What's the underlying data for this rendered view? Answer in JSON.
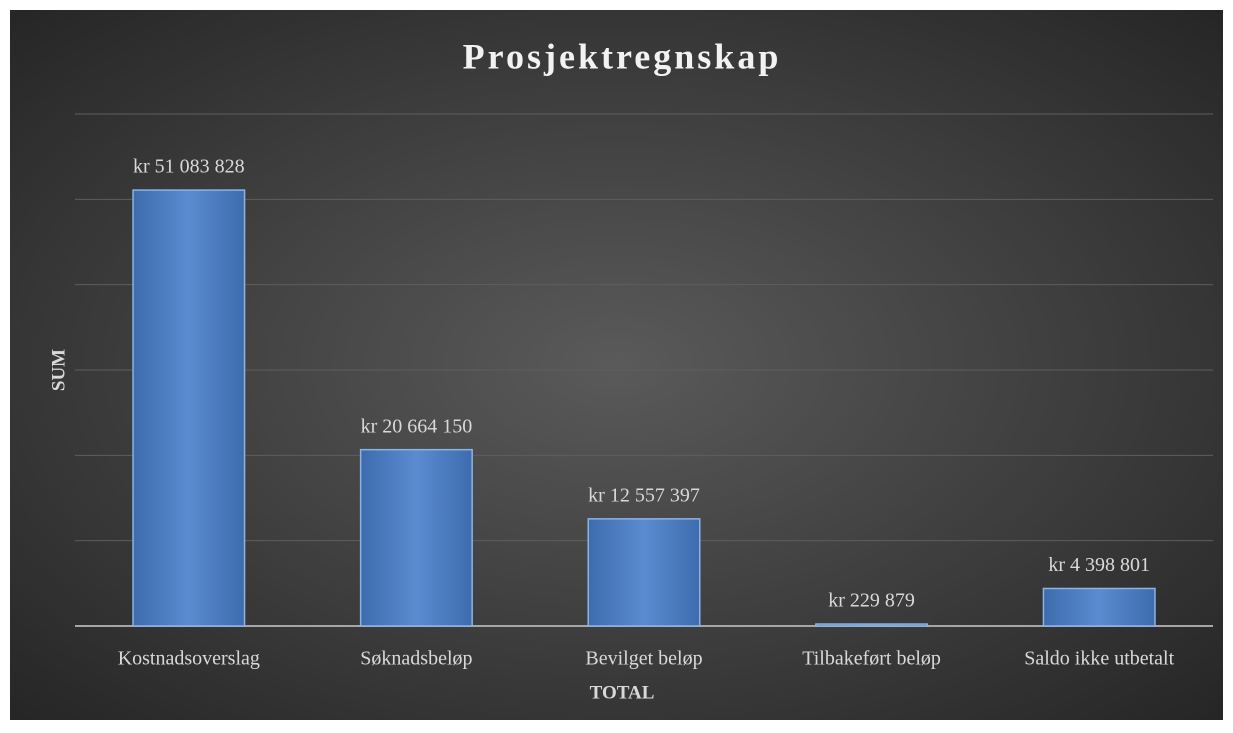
{
  "chart_data": {
    "type": "bar",
    "title": "Prosjektregnskap",
    "x_label": "TOTAL",
    "y_label": "SUM",
    "categories": [
      "Kostnadsoverslag",
      "Søknadsbeløp",
      "Bevilget beløp",
      "Tilbakeført beløp",
      "Saldo ikke utbetalt"
    ],
    "values": [
      51083828,
      20664150,
      12557397,
      229879,
      4398801
    ],
    "value_labels": [
      "kr 51 083 828",
      "kr 20 664 150",
      "kr 12 557 397",
      "kr 229 879",
      "kr 4 398 801"
    ],
    "color": "#4f81bd",
    "ylim": [
      0,
      60000000
    ],
    "yticks": [
      0,
      10000000,
      20000000,
      30000000,
      40000000,
      50000000,
      60000000
    ],
    "grid": true
  }
}
